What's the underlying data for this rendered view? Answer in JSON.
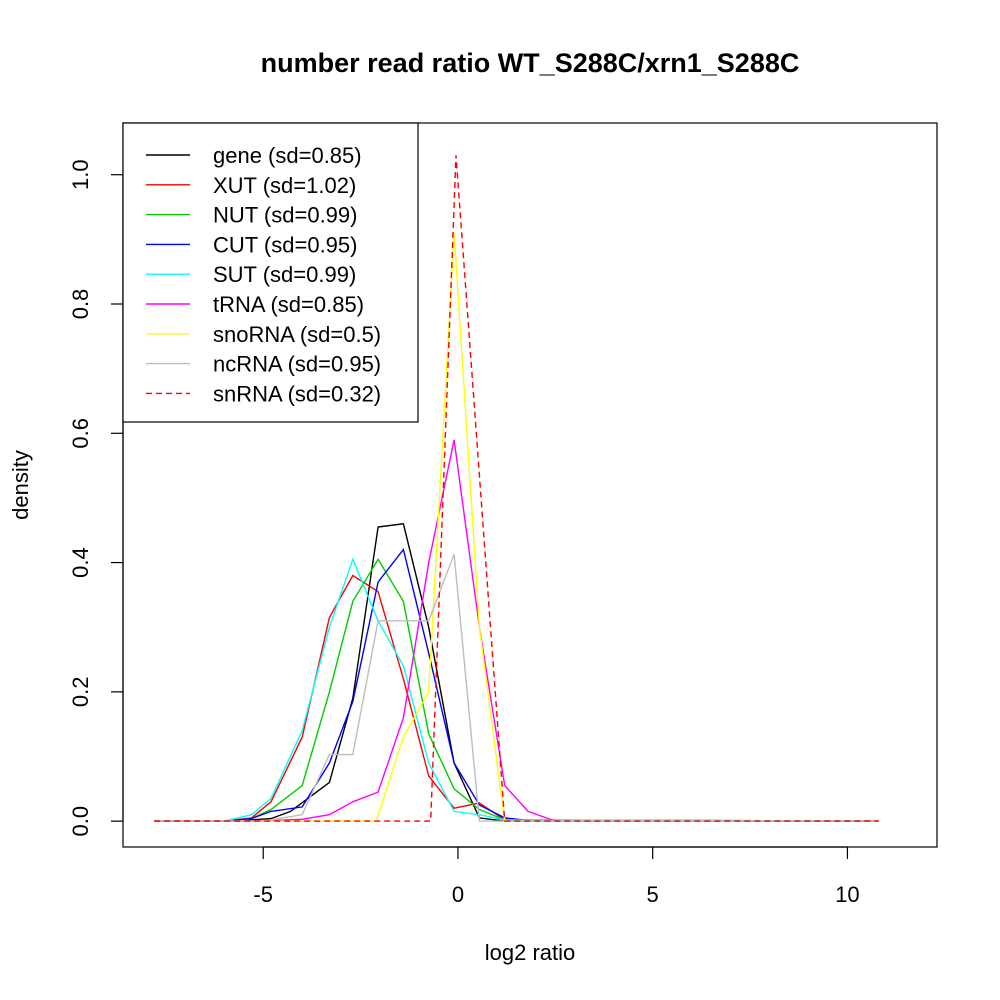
{
  "chart_data": {
    "type": "line",
    "title": "number read ratio WT_S288C/xrn1_S288C",
    "xlabel": "log2 ratio",
    "ylabel": "density",
    "xlim": [
      -8.6,
      12.3
    ],
    "ylim": [
      -0.04,
      1.08
    ],
    "xticks": [
      -5,
      0,
      5,
      10
    ],
    "xtick_labels": [
      "-5",
      "0",
      "5",
      "10"
    ],
    "yticks": [
      0.0,
      0.2,
      0.4,
      0.6,
      0.8,
      1.0
    ],
    "ytick_labels": [
      "0.0",
      "0.2",
      "0.4",
      "0.6",
      "0.8",
      "1.0"
    ],
    "grid": false,
    "legend_position": "top-left",
    "series": [
      {
        "name": "gene (sd=0.85)",
        "color": "#000000",
        "dash": false,
        "points": [
          [
            -7.8,
            0
          ],
          [
            -5.5,
            0
          ],
          [
            -5.3,
            0.002
          ],
          [
            -4.8,
            0.004
          ],
          [
            -4.3,
            0.015
          ],
          [
            -3.3,
            0.06
          ],
          [
            -2.7,
            0.19
          ],
          [
            -2.05,
            0.455
          ],
          [
            -1.4,
            0.46
          ],
          [
            -0.75,
            0.3
          ],
          [
            -0.1,
            0.09
          ],
          [
            0.55,
            0.005
          ],
          [
            1.2,
            0
          ],
          [
            10.8,
            0
          ]
        ]
      },
      {
        "name": "XUT (sd=1.02)",
        "color": "#ff0000",
        "dash": false,
        "points": [
          [
            -7.8,
            0
          ],
          [
            -6,
            0
          ],
          [
            -5.3,
            0.005
          ],
          [
            -4.8,
            0.03
          ],
          [
            -4,
            0.13
          ],
          [
            -3.3,
            0.315
          ],
          [
            -2.7,
            0.38
          ],
          [
            -2.05,
            0.355
          ],
          [
            -1.4,
            0.22
          ],
          [
            -0.75,
            0.07
          ],
          [
            -0.1,
            0.02
          ],
          [
            0.55,
            0.028
          ],
          [
            1.2,
            0.002
          ],
          [
            10.8,
            0
          ]
        ]
      },
      {
        "name": "NUT (sd=0.99)",
        "color": "#00cd00",
        "dash": false,
        "points": [
          [
            -7.8,
            0
          ],
          [
            -6,
            0
          ],
          [
            -5.3,
            0.004
          ],
          [
            -4.8,
            0.018
          ],
          [
            -4,
            0.055
          ],
          [
            -3.3,
            0.2
          ],
          [
            -2.7,
            0.34
          ],
          [
            -2.05,
            0.405
          ],
          [
            -1.4,
            0.34
          ],
          [
            -0.75,
            0.135
          ],
          [
            -0.1,
            0.05
          ],
          [
            0.55,
            0.018
          ],
          [
            1.2,
            0.002
          ],
          [
            10.8,
            0
          ]
        ]
      },
      {
        "name": "CUT (sd=0.95)",
        "color": "#0000ff",
        "dash": false,
        "points": [
          [
            -7.8,
            0
          ],
          [
            -6,
            0
          ],
          [
            -5.3,
            0.004
          ],
          [
            -4.8,
            0.015
          ],
          [
            -4,
            0.022
          ],
          [
            -3.3,
            0.09
          ],
          [
            -2.7,
            0.185
          ],
          [
            -2.05,
            0.37
          ],
          [
            -1.4,
            0.42
          ],
          [
            -0.75,
            0.26
          ],
          [
            -0.1,
            0.09
          ],
          [
            0.55,
            0.025
          ],
          [
            1.2,
            0.005
          ],
          [
            1.8,
            0.001
          ],
          [
            10.8,
            0
          ]
        ]
      },
      {
        "name": "SUT (sd=0.99)",
        "color": "#00ffff",
        "dash": false,
        "points": [
          [
            -7.8,
            0
          ],
          [
            -6,
            0
          ],
          [
            -5.3,
            0.01
          ],
          [
            -4.8,
            0.035
          ],
          [
            -4,
            0.14
          ],
          [
            -3.3,
            0.3
          ],
          [
            -2.7,
            0.405
          ],
          [
            -2.05,
            0.31
          ],
          [
            -1.4,
            0.24
          ],
          [
            -0.75,
            0.09
          ],
          [
            -0.1,
            0.015
          ],
          [
            0.55,
            0.01
          ],
          [
            1.2,
            0.002
          ],
          [
            10.8,
            0
          ]
        ]
      },
      {
        "name": "tRNA (sd=0.85)",
        "color": "#ff00ff",
        "dash": false,
        "points": [
          [
            -7.8,
            0
          ],
          [
            -5,
            0
          ],
          [
            -4,
            0.003
          ],
          [
            -3.3,
            0.01
          ],
          [
            -2.7,
            0.03
          ],
          [
            -2.05,
            0.045
          ],
          [
            -1.4,
            0.16
          ],
          [
            -0.75,
            0.4
          ],
          [
            -0.1,
            0.59
          ],
          [
            0.55,
            0.3
          ],
          [
            1.2,
            0.055
          ],
          [
            1.8,
            0.015
          ],
          [
            2.5,
            0
          ],
          [
            10.8,
            0
          ]
        ]
      },
      {
        "name": "snoRNA (sd=0.5)",
        "color": "#ffff00",
        "dash": false,
        "points": [
          [
            -7.8,
            0
          ],
          [
            -2.1,
            0
          ],
          [
            -1.4,
            0.13
          ],
          [
            -0.75,
            0.2
          ],
          [
            -0.1,
            0.91
          ],
          [
            0.55,
            0.3
          ],
          [
            1.2,
            0
          ],
          [
            10.8,
            0
          ]
        ]
      },
      {
        "name": "ncRNA (sd=0.95)",
        "color": "#bebebe",
        "dash": false,
        "points": [
          [
            -7.8,
            0
          ],
          [
            -5,
            0
          ],
          [
            -4,
            0.01
          ],
          [
            -3.3,
            0.103
          ],
          [
            -2.7,
            0.103
          ],
          [
            -2.05,
            0.31
          ],
          [
            -1.4,
            0.31
          ],
          [
            -0.75,
            0.31
          ],
          [
            -0.1,
            0.413
          ],
          [
            0.55,
            0
          ],
          [
            10.8,
            0
          ]
        ]
      },
      {
        "name": "snRNA (sd=0.32)",
        "color": "#ff0000",
        "dash": true,
        "points": [
          [
            -7.8,
            0
          ],
          [
            -0.7,
            0
          ],
          [
            -0.05,
            1.03
          ],
          [
            1.2,
            0
          ],
          [
            10.8,
            0
          ]
        ]
      }
    ]
  }
}
